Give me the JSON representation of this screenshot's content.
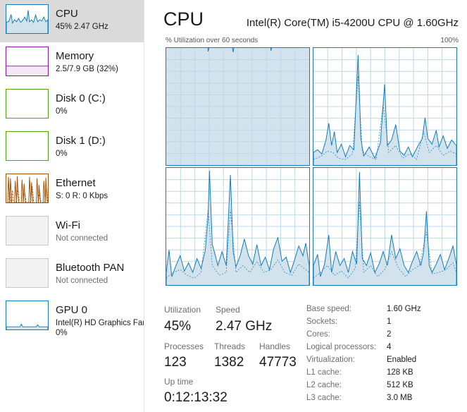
{
  "sidebar": {
    "items": [
      {
        "title": "CPU",
        "subtitle": "45%  2.47 GHz",
        "color": "#117dbb",
        "selected": true,
        "icon": "cpu-graph"
      },
      {
        "title": "Memory",
        "subtitle": "2.5/7.9 GB (32%)",
        "color": "#8b12ae",
        "icon": "memory-graph"
      },
      {
        "title": "Disk 0 (C:)",
        "subtitle": "0%",
        "color": "#4da60c",
        "icon": "disk-graph"
      },
      {
        "title": "Disk 1 (D:)",
        "subtitle": "0%",
        "color": "#4da60c",
        "icon": "disk-graph"
      },
      {
        "title": "Ethernet",
        "subtitle": "S: 0  R: 0 Kbps",
        "color": "#a74f01",
        "icon": "ethernet-graph"
      },
      {
        "title": "Wi-Fi",
        "subtitle": "Not connected",
        "color": "#c8c8c8",
        "icon": "wifi-graph"
      },
      {
        "title": "Bluetooth PAN",
        "subtitle": "Not connected",
        "color": "#c8c8c8",
        "icon": "bluetooth-graph"
      },
      {
        "title": "GPU 0",
        "subtitle": "Intel(R) HD Graphics Fan",
        "subtitle2": "0%",
        "color": "#117dbb",
        "icon": "gpu-graph"
      }
    ]
  },
  "main": {
    "title": "CPU",
    "model": "Intel(R) Core(TM) i5-4200U CPU @ 1.60GHz",
    "graph_label": "% Utilization over 60 seconds",
    "graph_max": "100%",
    "graph_color": "#117dbb"
  },
  "stats": {
    "utilization_label": "Utilization",
    "utilization": "45%",
    "speed_label": "Speed",
    "speed": "2.47 GHz",
    "processes_label": "Processes",
    "processes": "123",
    "threads_label": "Threads",
    "threads": "1382",
    "handles_label": "Handles",
    "handles": "47773",
    "uptime_label": "Up time",
    "uptime": "0:12:13:32"
  },
  "info": [
    {
      "label": "Base speed:",
      "value": "1.60 GHz"
    },
    {
      "label": "Sockets:",
      "value": "1"
    },
    {
      "label": "Cores:",
      "value": "2"
    },
    {
      "label": "Logical processors:",
      "value": "4"
    },
    {
      "label": "Virtualization:",
      "value": "Enabled"
    },
    {
      "label": "L1 cache:",
      "value": "128 KB"
    },
    {
      "label": "L2 cache:",
      "value": "512 KB"
    },
    {
      "label": "L3 cache:",
      "value": "3.0 MB"
    }
  ]
}
